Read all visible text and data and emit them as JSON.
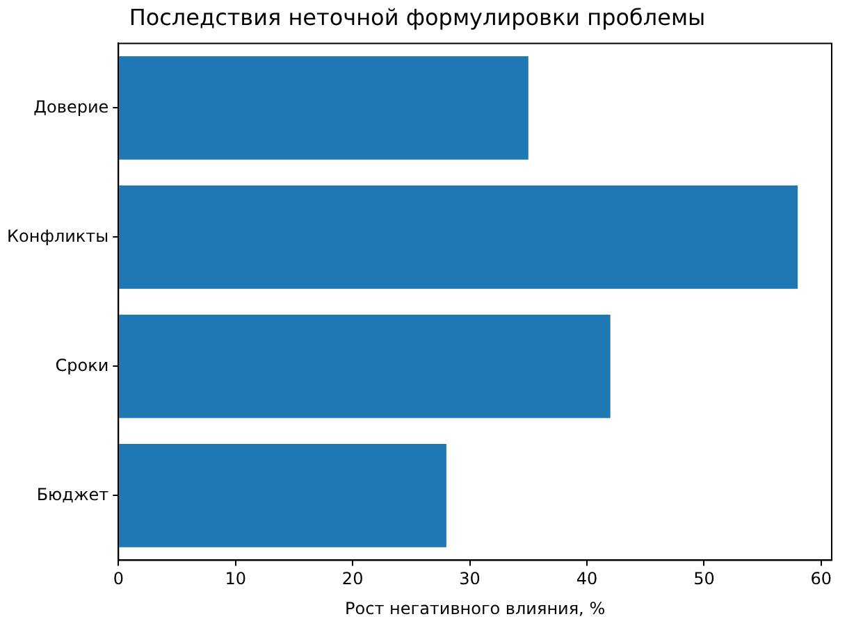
{
  "chart_data": {
    "type": "bar",
    "orientation": "horizontal",
    "title": "Последствия неточной формулировки проблемы",
    "xlabel": "Рост негативного влияния, %",
    "categories": [
      "Доверие",
      "Конфликты",
      "Сроки",
      "Бюджет"
    ],
    "values": [
      35,
      58,
      42,
      28
    ],
    "color": "#1f77b4",
    "xlim": [
      0,
      60.9
    ],
    "xticks": [
      0,
      10,
      20,
      30,
      40,
      50,
      60
    ],
    "grid": false,
    "legend": false
  }
}
